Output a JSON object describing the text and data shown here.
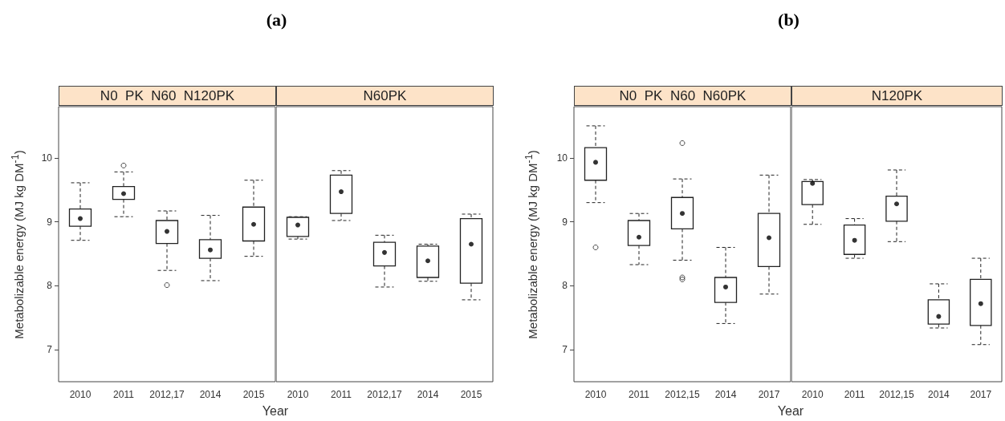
{
  "chart_data": [
    {
      "type": "box",
      "title": "(a)",
      "subtitle": "N0  PK  N60  N120PK",
      "xlabel": "Year",
      "ylabel": "Metabolizable energy (MJ kg DM$^{-1}$)",
      "categories": [
        "2010",
        "2011",
        "2012,17",
        "2014",
        "2015"
      ],
      "ylim": [
        6.5,
        10.8
      ],
      "yticks": [
        7,
        8,
        9,
        10
      ],
      "grid": false,
      "line_style": "dashed",
      "boxes": [
        {
          "low": 8.71,
          "q1": 8.93,
          "median": 9.05,
          "q3": 9.2,
          "high": 9.61
        },
        {
          "low": 9.08,
          "q1": 9.35,
          "median": 9.44,
          "q3": 9.55,
          "high": 9.78,
          "outliers": [
            9.88
          ]
        },
        {
          "low": 8.24,
          "q1": 8.66,
          "median": 8.85,
          "q3": 9.02,
          "high": 9.17,
          "outliers": [
            8.01
          ]
        },
        {
          "low": 8.08,
          "q1": 8.43,
          "median": 8.56,
          "q3": 8.72,
          "high": 9.1
        },
        {
          "low": 8.46,
          "q1": 8.7,
          "median": 8.96,
          "q3": 9.23,
          "high": 9.65
        }
      ]
    },
    {
      "type": "box",
      "subtitle": "N60PK",
      "categories": [
        "2010",
        "2011",
        "2012,17",
        "2014",
        "2015"
      ],
      "ylim": [
        6.5,
        10.8
      ],
      "yticks": [
        7,
        8,
        9,
        10
      ],
      "tick_labels": "x",
      "grid": false,
      "line_style": "dashed",
      "boxes": [
        {
          "low": 8.73,
          "q1": 8.77,
          "median": 8.95,
          "q3": 9.07,
          "high": 9.08
        },
        {
          "low": 9.02,
          "q1": 9.13,
          "median": 9.47,
          "q3": 9.73,
          "high": 9.8
        },
        {
          "low": 7.98,
          "q1": 8.31,
          "median": 8.52,
          "q3": 8.68,
          "high": 8.79
        },
        {
          "low": 8.07,
          "q1": 8.13,
          "median": 8.39,
          "q3": 8.62,
          "high": 8.65
        },
        {
          "low": 7.78,
          "q1": 8.04,
          "median": 8.65,
          "q3": 9.05,
          "high": 9.12
        }
      ]
    },
    {
      "type": "box",
      "title": "(b)",
      "subtitle": "N0  PK  N60  N60PK",
      "xlabel": "Year",
      "ylabel": "Metabolizable energy (MJ kg DM$^{-1}$)",
      "categories": [
        "2010",
        "2011",
        "2012,15",
        "2014",
        "2017"
      ],
      "ylim": [
        6.5,
        10.8
      ],
      "yticks": [
        7,
        8,
        9,
        10
      ],
      "grid": false,
      "line_style": "dashed",
      "boxes": [
        {
          "low": 9.3,
          "q1": 9.65,
          "median": 9.93,
          "q3": 10.16,
          "high": 10.5,
          "outliers": [
            8.6
          ]
        },
        {
          "low": 8.33,
          "q1": 8.63,
          "median": 8.76,
          "q3": 9.02,
          "high": 9.13
        },
        {
          "low": 8.4,
          "q1": 8.89,
          "median": 9.13,
          "q3": 9.38,
          "high": 9.67,
          "outliers": [
            10.23,
            8.13,
            8.1
          ]
        },
        {
          "low": 7.41,
          "q1": 7.74,
          "median": 7.98,
          "q3": 8.13,
          "high": 8.6
        },
        {
          "low": 7.87,
          "q1": 8.3,
          "median": 8.75,
          "q3": 9.13,
          "high": 9.73
        }
      ]
    },
    {
      "type": "box",
      "subtitle": "N120PK",
      "categories": [
        "2010",
        "2011",
        "2012,15",
        "2014",
        "2017"
      ],
      "ylim": [
        6.5,
        10.8
      ],
      "yticks": [
        7,
        8,
        9,
        10
      ],
      "tick_labels": "x",
      "grid": false,
      "line_style": "dashed",
      "boxes": [
        {
          "low": 8.96,
          "q1": 9.27,
          "median": 9.6,
          "q3": 9.63,
          "high": 9.66
        },
        {
          "low": 8.43,
          "q1": 8.49,
          "median": 8.71,
          "q3": 8.95,
          "high": 9.05
        },
        {
          "low": 8.69,
          "q1": 9.01,
          "median": 9.28,
          "q3": 9.4,
          "high": 9.81
        },
        {
          "low": 7.34,
          "q1": 7.4,
          "median": 7.52,
          "q3": 7.78,
          "high": 8.03
        },
        {
          "low": 7.08,
          "q1": 7.38,
          "median": 7.72,
          "q3": 8.1,
          "high": 8.43
        }
      ]
    }
  ]
}
